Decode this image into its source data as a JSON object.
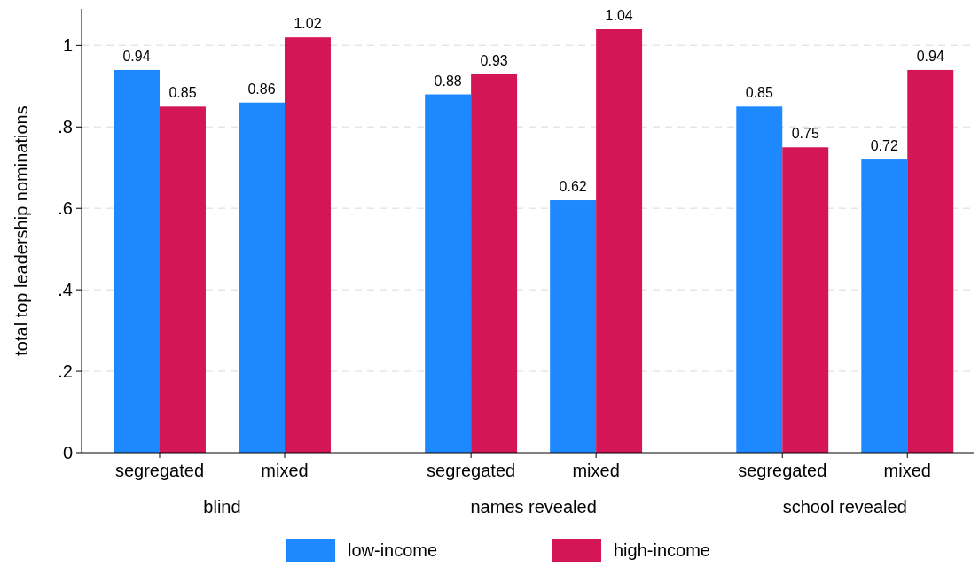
{
  "chart_data": {
    "type": "bar",
    "ylabel": "total top leadership nominations",
    "categories": [
      "segregated",
      "mixed",
      "segregated",
      "mixed",
      "segregated",
      "mixed"
    ],
    "series": [
      {
        "name": "low-income",
        "color": "#1e88ff",
        "values": [
          0.94,
          0.86,
          0.88,
          0.62,
          0.85,
          0.72
        ]
      },
      {
        "name": "high-income",
        "color": "#d41556",
        "values": [
          0.85,
          1.02,
          0.93,
          1.04,
          0.75,
          0.94
        ]
      }
    ],
    "annotations": [
      "blind",
      "names revealed",
      "school revealed"
    ],
    "ylim": [
      0,
      1.09
    ],
    "yticks": [
      0,
      {
        "value": 0.2,
        "label": ".2"
      },
      {
        "value": 0.4,
        "label": ".4"
      },
      {
        "value": 0.6,
        "label": ".6"
      },
      {
        "value": 0.8,
        "label": ".8"
      },
      1
    ],
    "grid": "y",
    "legend": "bottom",
    "data_labels": true
  }
}
